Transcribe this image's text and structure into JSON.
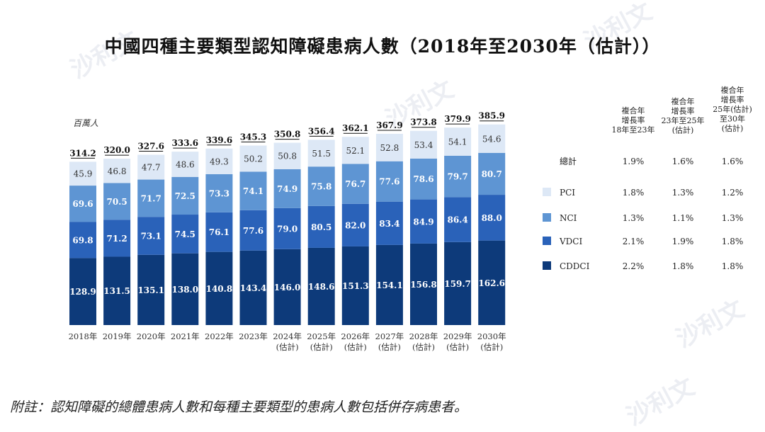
{
  "title": "中國四種主要類型認知障礙患病人數（2018年至2030年（估計））",
  "note": "附註：認知障礙的總體患病人數和每種主要類型的患病人數包括併存病患者。",
  "watermark": "沙利文",
  "chart_data": {
    "type": "bar",
    "stacked": true,
    "unit_label": "百萬人",
    "categories": [
      "2018年",
      "2019年",
      "2020年",
      "2021年",
      "2022年",
      "2023年",
      "2024年",
      "2025年",
      "2026年",
      "2027年",
      "2028年",
      "2029年",
      "2030年"
    ],
    "category_sublabels": [
      "",
      "",
      "",
      "",
      "",
      "",
      "(估計)",
      "(估計)",
      "(估計)",
      "(估計)",
      "(估計)",
      "(估計)",
      "(估計)"
    ],
    "totals": [
      314.2,
      320.0,
      327.6,
      333.6,
      339.6,
      345.3,
      350.8,
      356.4,
      362.1,
      367.9,
      373.8,
      379.9,
      385.9
    ],
    "series": [
      {
        "name": "CDDCI",
        "color": "#0d3a7a",
        "values": [
          128.9,
          131.5,
          135.1,
          138.0,
          140.8,
          143.4,
          146.0,
          148.6,
          151.3,
          154.1,
          156.8,
          159.7,
          162.6
        ]
      },
      {
        "name": "VDCI",
        "color": "#2a62b9",
        "values": [
          69.8,
          71.2,
          73.1,
          74.5,
          76.1,
          77.6,
          79.0,
          80.5,
          82.0,
          83.4,
          84.9,
          86.4,
          88.0
        ]
      },
      {
        "name": "NCI",
        "color": "#5e95d3",
        "values": [
          69.6,
          70.5,
          71.7,
          72.5,
          73.3,
          74.1,
          74.9,
          75.8,
          76.7,
          77.6,
          78.6,
          79.7,
          80.7
        ]
      },
      {
        "name": "PCI",
        "color": "#dde8f6",
        "values": [
          45.9,
          46.8,
          47.7,
          48.6,
          49.3,
          50.2,
          50.8,
          51.5,
          52.1,
          52.8,
          53.4,
          54.1,
          54.6
        ]
      }
    ],
    "cagr_table": {
      "headers": [
        [
          "複合年",
          "增長率",
          "18年至23年"
        ],
        [
          "複合年",
          "增長率",
          "23年至25年",
          "(估計)"
        ],
        [
          "複合年",
          "增長率",
          "25年(估計)",
          "至30年",
          "(估計)"
        ]
      ],
      "rows": [
        {
          "label": "總計",
          "values": [
            "1.9%",
            "1.6%",
            "1.6%"
          ]
        },
        {
          "label": "PCI",
          "values": [
            "1.8%",
            "1.3%",
            "1.2%"
          ]
        },
        {
          "label": "NCI",
          "values": [
            "1.3%",
            "1.1%",
            "1.3%"
          ]
        },
        {
          "label": "VDCI",
          "values": [
            "2.1%",
            "1.9%",
            "1.8%"
          ]
        },
        {
          "label": "CDDCI",
          "values": [
            "2.2%",
            "1.8%",
            "1.8%"
          ]
        }
      ]
    }
  }
}
